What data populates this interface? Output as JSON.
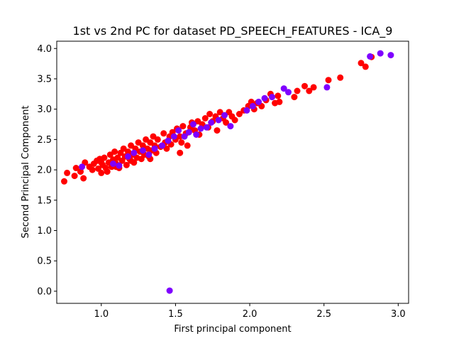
{
  "chart_data": {
    "type": "scatter",
    "title": "1st vs 2nd PC for dataset PD_SPEECH_FEATURES - ICA_9",
    "xlabel": "First principal component",
    "ylabel": "Second Principal Component",
    "xlim": [
      0.7,
      3.07
    ],
    "ylim": [
      -0.2,
      4.12
    ],
    "xticks": [
      1.0,
      1.5,
      2.0,
      2.5,
      3.0
    ],
    "xtick_labels": [
      "1.0",
      "1.5",
      "2.0",
      "2.5",
      "3.0"
    ],
    "yticks": [
      0.0,
      0.5,
      1.0,
      1.5,
      2.0,
      2.5,
      3.0,
      3.5,
      4.0
    ],
    "ytick_labels": [
      "0.0",
      "0.5",
      "1.0",
      "1.5",
      "2.0",
      "2.5",
      "3.0",
      "3.5",
      "4.0"
    ],
    "grid": false,
    "legend": "none",
    "series": [
      {
        "color": "#ff0000",
        "points": [
          [
            0.75,
            1.81
          ],
          [
            0.77,
            1.95
          ],
          [
            0.82,
            1.9
          ],
          [
            0.83,
            2.03
          ],
          [
            0.86,
            1.97
          ],
          [
            0.88,
            1.86
          ],
          [
            0.89,
            2.12
          ],
          [
            0.92,
            2.05
          ],
          [
            0.94,
            2.0
          ],
          [
            0.95,
            2.1
          ],
          [
            0.97,
            2.15
          ],
          [
            0.98,
            2.02
          ],
          [
            0.99,
            2.18
          ],
          [
            1.0,
            1.95
          ],
          [
            1.01,
            2.08
          ],
          [
            1.02,
            2.2
          ],
          [
            1.03,
            2.03
          ],
          [
            1.04,
            1.97
          ],
          [
            1.05,
            2.12
          ],
          [
            1.06,
            2.25
          ],
          [
            1.07,
            2.05
          ],
          [
            1.08,
            2.17
          ],
          [
            1.09,
            2.3
          ],
          [
            1.1,
            2.1
          ],
          [
            1.11,
            2.2
          ],
          [
            1.12,
            2.03
          ],
          [
            1.13,
            2.28
          ],
          [
            1.14,
            2.15
          ],
          [
            1.15,
            2.35
          ],
          [
            1.16,
            2.22
          ],
          [
            1.17,
            2.08
          ],
          [
            1.18,
            2.3
          ],
          [
            1.19,
            2.18
          ],
          [
            1.2,
            2.4
          ],
          [
            1.21,
            2.25
          ],
          [
            1.22,
            2.12
          ],
          [
            1.23,
            2.35
          ],
          [
            1.24,
            2.2
          ],
          [
            1.25,
            2.45
          ],
          [
            1.26,
            2.3
          ],
          [
            1.27,
            2.18
          ],
          [
            1.28,
            2.4
          ],
          [
            1.29,
            2.25
          ],
          [
            1.3,
            2.5
          ],
          [
            1.31,
            2.35
          ],
          [
            1.32,
            2.22
          ],
          [
            1.33,
            2.45
          ],
          [
            1.34,
            2.32
          ],
          [
            1.35,
            2.55
          ],
          [
            1.36,
            2.4
          ],
          [
            1.37,
            2.28
          ],
          [
            1.38,
            2.5
          ],
          [
            1.4,
            2.38
          ],
          [
            1.42,
            2.6
          ],
          [
            1.43,
            2.45
          ],
          [
            1.44,
            2.35
          ],
          [
            1.46,
            2.55
          ],
          [
            1.47,
            2.42
          ],
          [
            1.48,
            2.62
          ],
          [
            1.5,
            2.5
          ],
          [
            1.51,
            2.68
          ],
          [
            1.53,
            2.55
          ],
          [
            1.54,
            2.45
          ],
          [
            1.55,
            2.72
          ],
          [
            1.57,
            2.6
          ],
          [
            1.58,
            2.4
          ],
          [
            1.6,
            2.7
          ],
          [
            1.61,
            2.78
          ],
          [
            1.63,
            2.65
          ],
          [
            1.65,
            2.8
          ],
          [
            1.66,
            2.58
          ],
          [
            1.68,
            2.75
          ],
          [
            1.7,
            2.85
          ],
          [
            1.72,
            2.7
          ],
          [
            1.73,
            2.92
          ],
          [
            1.75,
            2.8
          ],
          [
            1.77,
            2.88
          ],
          [
            1.78,
            2.65
          ],
          [
            1.8,
            2.95
          ],
          [
            1.82,
            2.85
          ],
          [
            1.84,
            2.78
          ],
          [
            1.86,
            2.95
          ],
          [
            1.88,
            2.88
          ],
          [
            1.9,
            2.82
          ],
          [
            1.93,
            2.92
          ],
          [
            1.96,
            2.98
          ],
          [
            1.99,
            3.05
          ],
          [
            2.01,
            3.12
          ],
          [
            2.03,
            3.0
          ],
          [
            2.05,
            3.1
          ],
          [
            2.08,
            3.05
          ],
          [
            2.11,
            3.15
          ],
          [
            2.14,
            3.25
          ],
          [
            2.17,
            3.1
          ],
          [
            2.19,
            3.22
          ],
          [
            2.2,
            3.12
          ],
          [
            2.3,
            3.2
          ],
          [
            2.32,
            3.3
          ],
          [
            2.37,
            3.38
          ],
          [
            2.4,
            3.3
          ],
          [
            2.43,
            3.36
          ],
          [
            2.53,
            3.48
          ],
          [
            2.61,
            3.52
          ],
          [
            2.75,
            3.76
          ],
          [
            2.78,
            3.7
          ],
          [
            2.82,
            3.86
          ],
          [
            1.53,
            2.28
          ],
          [
            1.33,
            2.18
          ],
          [
            1.2,
            2.15
          ],
          [
            1.1,
            2.05
          ],
          [
            1.0,
            2.12
          ]
        ]
      },
      {
        "color": "#7f00ff",
        "points": [
          [
            0.87,
            2.05
          ],
          [
            1.08,
            2.1
          ],
          [
            1.12,
            2.07
          ],
          [
            1.18,
            2.22
          ],
          [
            1.22,
            2.28
          ],
          [
            1.28,
            2.32
          ],
          [
            1.32,
            2.25
          ],
          [
            1.36,
            2.35
          ],
          [
            1.41,
            2.4
          ],
          [
            1.45,
            2.48
          ],
          [
            1.49,
            2.55
          ],
          [
            1.52,
            2.65
          ],
          [
            1.56,
            2.55
          ],
          [
            1.59,
            2.62
          ],
          [
            1.62,
            2.75
          ],
          [
            1.64,
            2.58
          ],
          [
            1.67,
            2.68
          ],
          [
            1.71,
            2.7
          ],
          [
            1.74,
            2.78
          ],
          [
            1.79,
            2.82
          ],
          [
            1.83,
            2.9
          ],
          [
            1.87,
            2.72
          ],
          [
            1.98,
            2.98
          ],
          [
            2.02,
            3.05
          ],
          [
            2.06,
            3.12
          ],
          [
            2.1,
            3.18
          ],
          [
            2.15,
            3.2
          ],
          [
            2.23,
            3.34
          ],
          [
            2.26,
            3.28
          ],
          [
            2.52,
            3.36
          ],
          [
            2.81,
            3.87
          ],
          [
            2.88,
            3.92
          ],
          [
            2.95,
            3.89
          ],
          [
            1.46,
            0.01
          ]
        ]
      }
    ]
  }
}
